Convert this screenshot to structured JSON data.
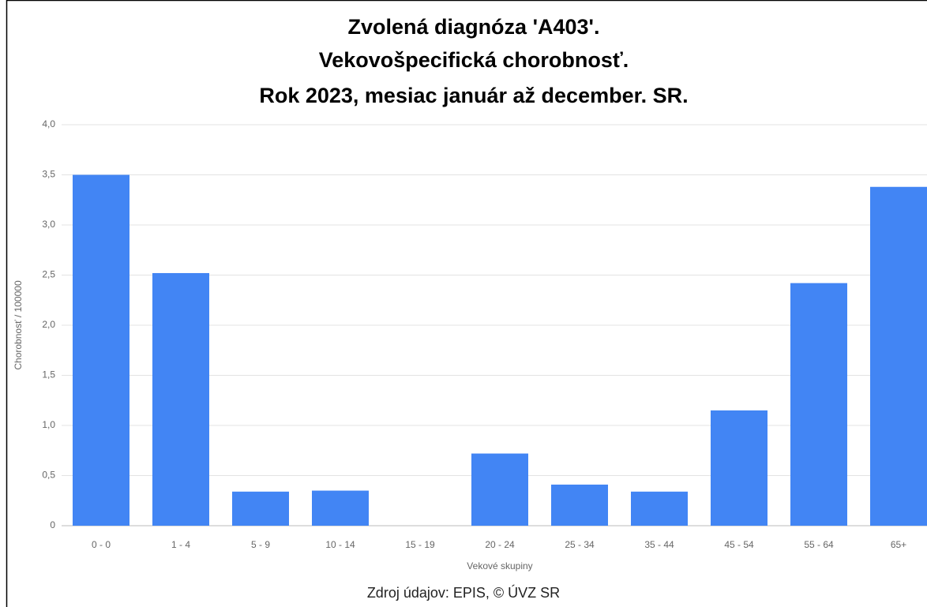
{
  "chart_data": {
    "type": "bar",
    "title": [
      "Zvolená diagnóza 'A403'.",
      "Vekovošpecifická chorobnosť.",
      "Rok 2023, mesiac január až december. SR."
    ],
    "y_label": "Chorobnosť / 100000",
    "x_label": "Vekové skupiny",
    "source": "Zdroj údajov: EPIS, © ÚVZ SR",
    "categories": [
      "0 - 0",
      "1 - 4",
      "5 - 9",
      "10 - 14",
      "15 - 19",
      "20 - 24",
      "25 - 34",
      "35 - 44",
      "45 - 54",
      "55 - 64",
      "65+"
    ],
    "values": [
      3.5,
      2.52,
      0.34,
      0.35,
      0,
      0.72,
      0.41,
      0.34,
      1.15,
      2.42,
      3.38
    ],
    "color": "#4285f4",
    "ylim": [
      0,
      4
    ],
    "yticks": [
      0,
      {
        "value": 0.5,
        "label": "0,5"
      },
      {
        "value": 1,
        "label": "1,0"
      },
      {
        "value": 1.5,
        "label": "1,5"
      },
      {
        "value": 2,
        "label": "2,0"
      },
      {
        "value": 2.5,
        "label": "2,5"
      },
      {
        "value": 3,
        "label": "3,0"
      },
      {
        "value": 3.5,
        "label": "3,5"
      },
      {
        "value": 4,
        "label": "4,0"
      }
    ],
    "grid": true
  }
}
